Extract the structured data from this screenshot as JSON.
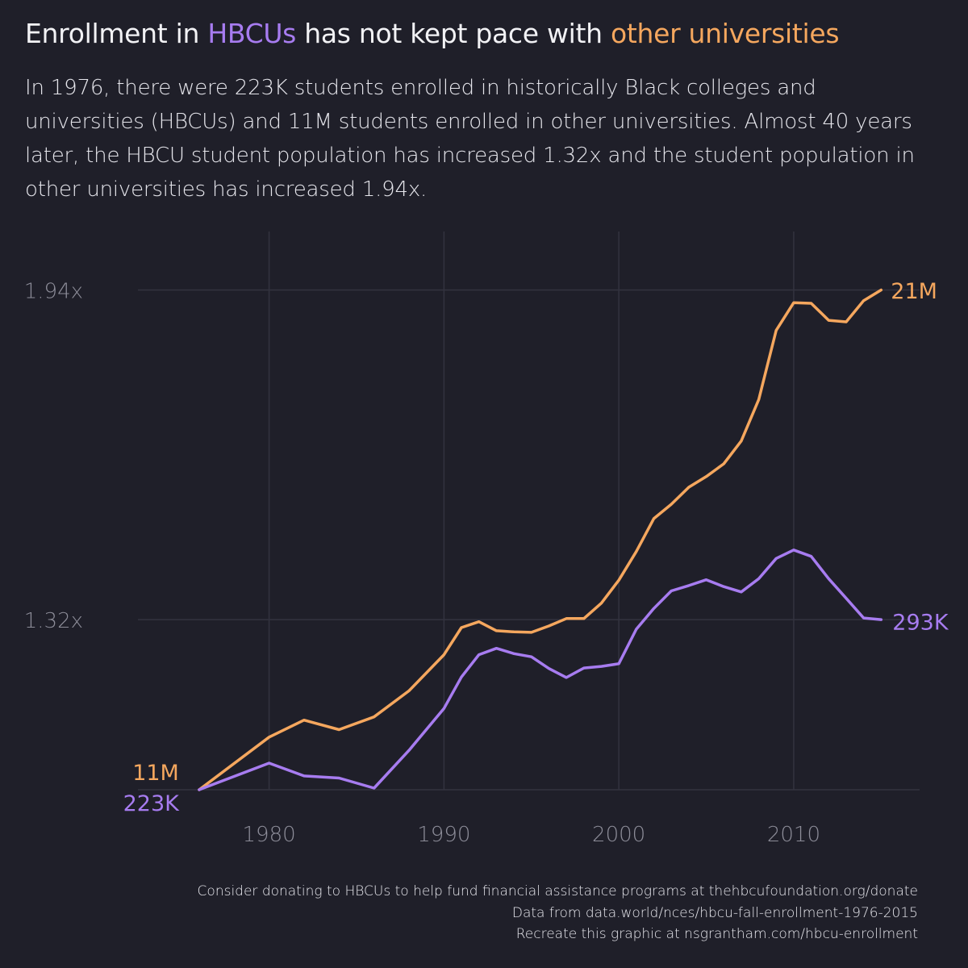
{
  "header": {
    "title_prefix": "Enrollment in ",
    "title_hbcu": "HBCUs",
    "title_middle": " has not kept pace with ",
    "title_other": "other universities",
    "subtitle": "In 1976, there were 223K students enrolled in historically Black colleges and universities (HBCUs) and 11M students enrolled in other universities. Almost 40 years later, the HBCU student population has increased 1.32x and the student population in other universities has increased 1.94x."
  },
  "colors": {
    "background": "#1f1f29",
    "hbcu": "#a77cf0",
    "other": "#f5a75e",
    "grid": "#33333f",
    "axis_text": "#8d8d99"
  },
  "chart_data": {
    "type": "line",
    "xlim": [
      1972.5,
      2017.2
    ],
    "ylim": [
      1.0,
      2.05
    ],
    "x_ticks": [
      1980,
      1990,
      2000,
      2010
    ],
    "y_ticks": [
      {
        "value": 1.32,
        "label": "1.32x"
      },
      {
        "value": 1.94,
        "label": "1.94x"
      }
    ],
    "x": [
      1976,
      1980,
      1982,
      1984,
      1986,
      1988,
      1990,
      1991,
      1992,
      1993,
      1994,
      1995,
      1996,
      1997,
      1998,
      1999,
      2000,
      2001,
      2002,
      2003,
      2004,
      2005,
      2006,
      2007,
      2008,
      2009,
      2010,
      2011,
      2012,
      2013,
      2014,
      2015
    ],
    "series": [
      {
        "key": "other",
        "start_label": "11M",
        "end_label": "21M",
        "values": [
          1.0,
          1.099,
          1.131,
          1.113,
          1.137,
          1.186,
          1.254,
          1.305,
          1.316,
          1.299,
          1.297,
          1.296,
          1.308,
          1.322,
          1.322,
          1.351,
          1.394,
          1.448,
          1.51,
          1.537,
          1.569,
          1.589,
          1.613,
          1.656,
          1.734,
          1.864,
          1.916,
          1.915,
          1.883,
          1.88,
          1.92,
          1.94
        ]
      },
      {
        "key": "hbcu",
        "start_label": "223K",
        "end_label": "293K",
        "values": [
          1.0,
          1.05,
          1.026,
          1.022,
          1.003,
          1.074,
          1.153,
          1.212,
          1.254,
          1.266,
          1.256,
          1.25,
          1.228,
          1.211,
          1.229,
          1.232,
          1.237,
          1.302,
          1.341,
          1.374,
          1.384,
          1.395,
          1.382,
          1.372,
          1.397,
          1.435,
          1.451,
          1.439,
          1.397,
          1.36,
          1.323,
          1.32
        ]
      }
    ]
  },
  "footer": {
    "line1": "Consider donating to HBCUs to help fund financial assistance programs at thehbcufoundation.org/donate",
    "line2": "Data from data.world/nces/hbcu-fall-enrollment-1976-2015",
    "line3": "Recreate this graphic at nsgrantham.com/hbcu-enrollment"
  }
}
